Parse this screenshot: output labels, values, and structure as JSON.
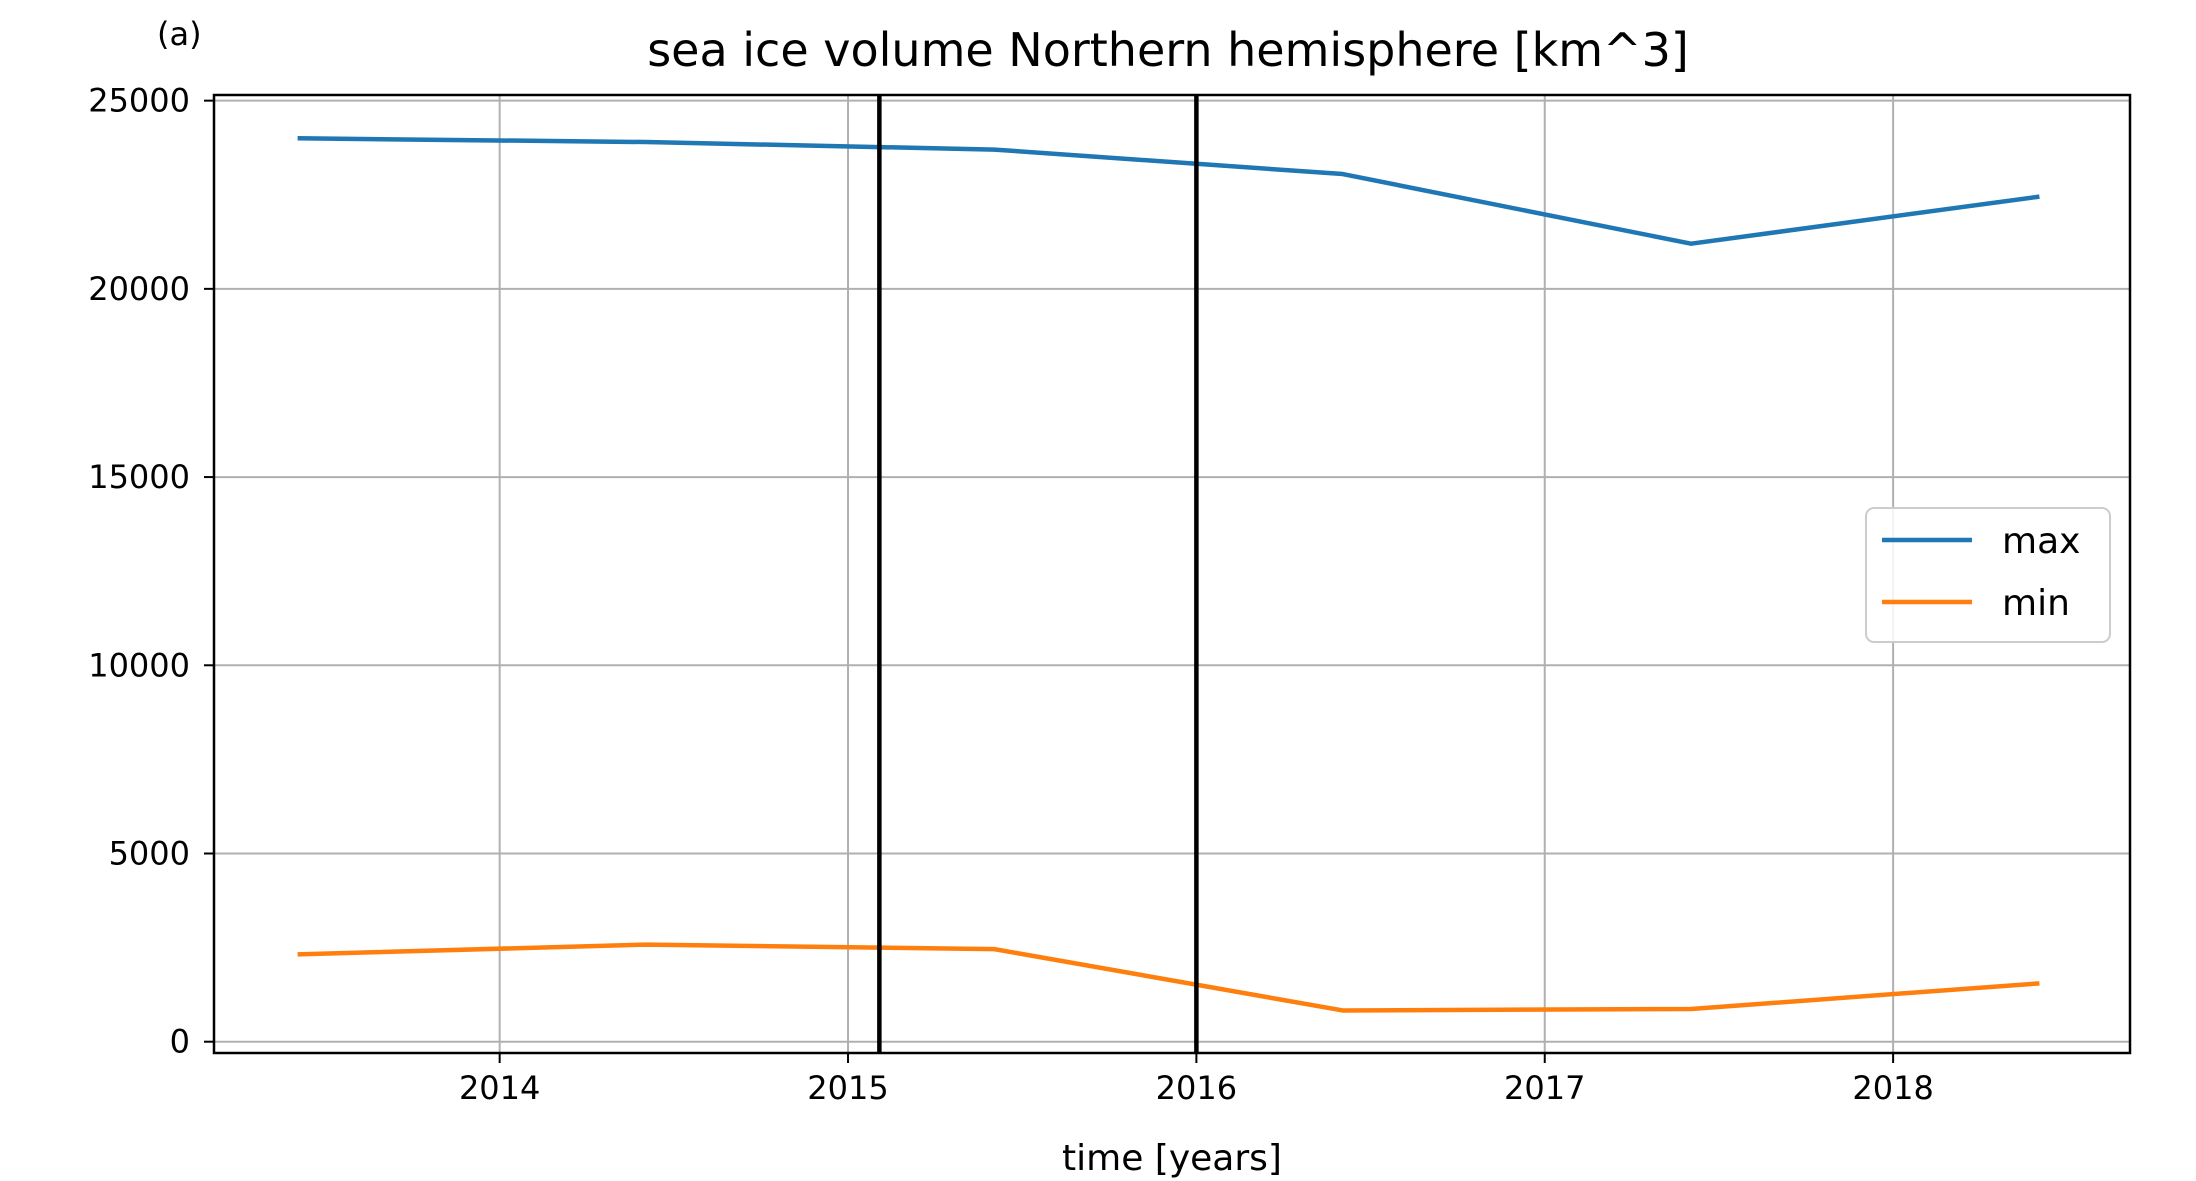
{
  "panel_label": "(a)",
  "chart_data": {
    "type": "line",
    "title": "sea ice volume Northern hemisphere [km^3]",
    "xlabel": "time [years]",
    "ylabel": "",
    "xlim": [
      2013.18,
      2018.68
    ],
    "ylim": [
      -300,
      25150
    ],
    "xticks": [
      2014,
      2015,
      2016,
      2017,
      2018
    ],
    "yticks": [
      0,
      5000,
      10000,
      15000,
      20000,
      25000
    ],
    "grid": true,
    "legend_position": "center-right",
    "x": [
      2013.42,
      2014.42,
      2015.42,
      2016.42,
      2017.42,
      2018.42
    ],
    "series": [
      {
        "name": "max",
        "color": "#1f77b4",
        "values": [
          24000,
          23900,
          23700,
          23050,
          21200,
          22450
        ]
      },
      {
        "name": "min",
        "color": "#ff7f0e",
        "values": [
          2320,
          2580,
          2460,
          830,
          870,
          1550
        ]
      }
    ],
    "vertical_lines": [
      {
        "x": 2015.09,
        "color": "#000000"
      },
      {
        "x": 2016.0,
        "color": "#000000"
      }
    ]
  }
}
